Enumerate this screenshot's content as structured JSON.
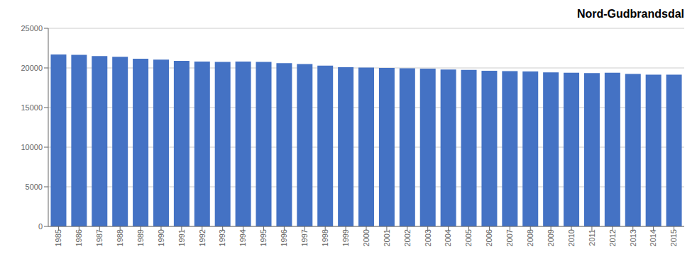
{
  "chart_data": {
    "type": "bar",
    "title": "Nord-Gudbrandsdal",
    "categories": [
      "1985",
      "1986",
      "1987",
      "1988",
      "1989",
      "1990",
      "1991",
      "1992",
      "1993",
      "1994",
      "1995",
      "1996",
      "1997",
      "1998",
      "1999",
      "2000",
      "2001",
      "2002",
      "2003",
      "2004",
      "2005",
      "2006",
      "2007",
      "2008",
      "2009",
      "2010",
      "2011",
      "2012",
      "2013",
      "2014",
      "2015"
    ],
    "values": [
      21700,
      21650,
      21500,
      21400,
      21150,
      21050,
      20900,
      20800,
      20750,
      20800,
      20750,
      20600,
      20500,
      20300,
      20100,
      20050,
      20000,
      19950,
      19900,
      19800,
      19750,
      19650,
      19600,
      19550,
      19450,
      19400,
      19350,
      19400,
      19250,
      19150,
      19150
    ],
    "color": "#4472C4",
    "ylim": [
      0,
      25000
    ],
    "yticks": [
      0,
      5000,
      10000,
      15000,
      20000,
      25000
    ],
    "grid": true
  }
}
